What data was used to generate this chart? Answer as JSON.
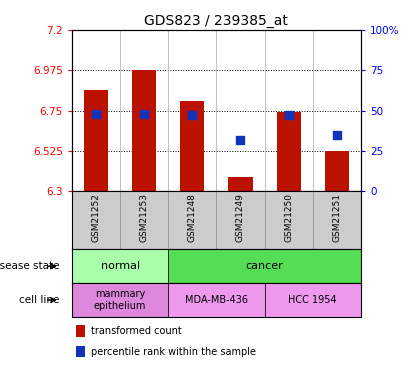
{
  "title": "GDS823 / 239385_at",
  "samples": [
    "GSM21252",
    "GSM21253",
    "GSM21248",
    "GSM21249",
    "GSM21250",
    "GSM21251"
  ],
  "bar_values": [
    6.865,
    6.975,
    6.805,
    6.38,
    6.745,
    6.525
  ],
  "percentile_values": [
    48,
    48,
    47,
    32,
    47,
    35
  ],
  "bar_bottom": 6.3,
  "ylim_left": [
    6.3,
    7.2
  ],
  "ylim_right": [
    0,
    100
  ],
  "yticks_left": [
    6.3,
    6.525,
    6.75,
    6.975,
    7.2
  ],
  "ytick_labels_left": [
    "6.3",
    "6.525",
    "6.75",
    "6.975",
    "7.2"
  ],
  "yticks_right": [
    0,
    25,
    50,
    75,
    100
  ],
  "ytick_labels_right": [
    "0",
    "25",
    "50",
    "75",
    "100%"
  ],
  "bar_color": "#bb1100",
  "dot_color": "#1133bb",
  "bg_color": "#ffffff",
  "sample_bg": "#cccccc",
  "disease_state": {
    "groups": [
      {
        "text": "normal",
        "span": [
          0,
          2
        ],
        "facecolor": "#aaffaa"
      },
      {
        "text": "cancer",
        "span": [
          2,
          6
        ],
        "facecolor": "#55dd55"
      }
    ]
  },
  "cell_line": {
    "groups": [
      {
        "text": "mammary\nepithelium",
        "span": [
          0,
          2
        ],
        "facecolor": "#dd88dd"
      },
      {
        "text": "MDA-MB-436",
        "span": [
          2,
          4
        ],
        "facecolor": "#ee99ee"
      },
      {
        "text": "HCC 1954",
        "span": [
          4,
          6
        ],
        "facecolor": "#ee99ee"
      }
    ]
  },
  "legend": [
    {
      "color": "#bb1100",
      "label": "transformed count"
    },
    {
      "color": "#1133bb",
      "label": "percentile rank within the sample"
    }
  ],
  "bar_width": 0.5,
  "dot_size": 30
}
